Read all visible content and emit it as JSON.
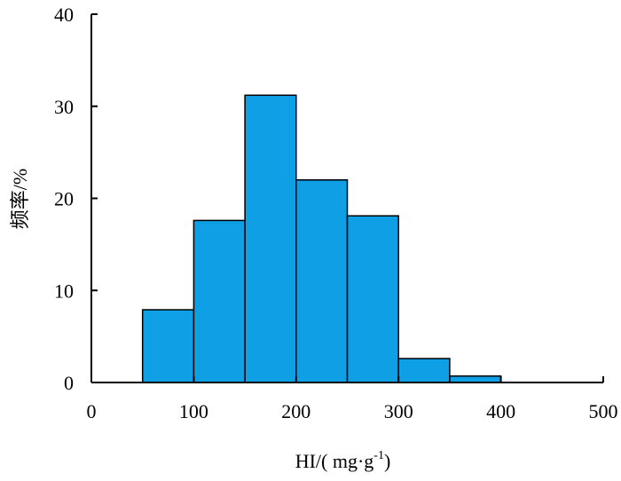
{
  "chart_data": {
    "type": "bar",
    "histogram": true,
    "bin_edges": [
      50,
      100,
      150,
      200,
      250,
      300,
      350,
      400
    ],
    "values": [
      7.9,
      17.6,
      31.2,
      22.0,
      18.1,
      2.6,
      0.7
    ],
    "xlim": [
      0,
      500
    ],
    "ylim": [
      0,
      40
    ],
    "xticks": [
      "0",
      "100",
      "200",
      "300",
      "400",
      "500"
    ],
    "yticks": [
      "0",
      "10",
      "20",
      "30",
      "40"
    ],
    "xlabel": {
      "main": "HI/( mg·g",
      "sup": "-1",
      "close": ")"
    },
    "ylabel": "频率/%",
    "bar_color": "#0f9fe5",
    "edge_color": "#000000",
    "grid": false,
    "legend": "none"
  }
}
